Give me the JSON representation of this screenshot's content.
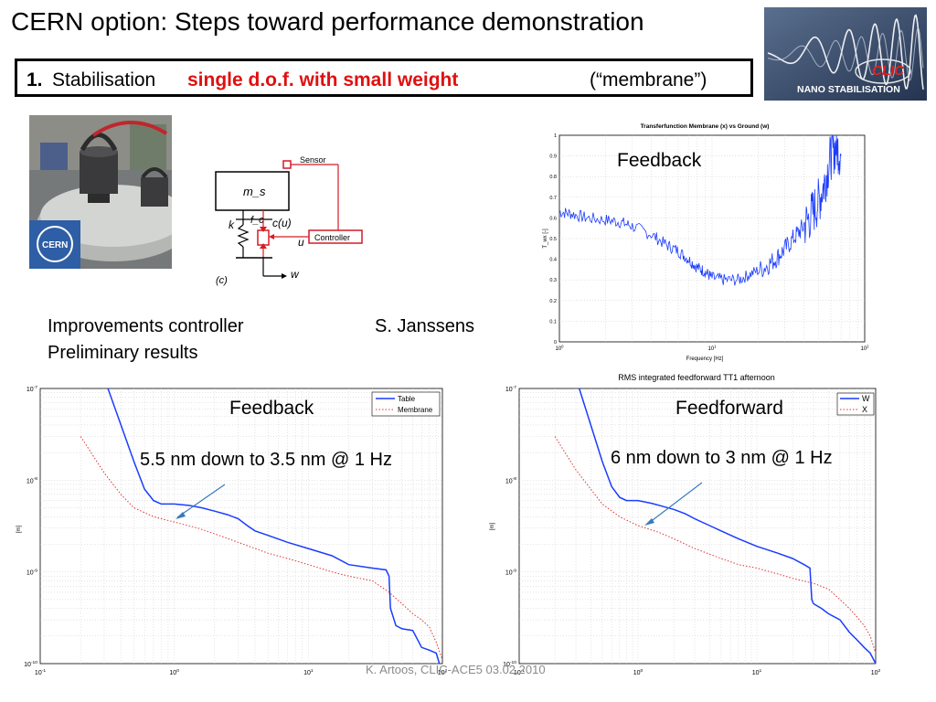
{
  "slide": {
    "title": "CERN option: Steps toward performance demonstration",
    "subtitle_number": "1.",
    "subtitle_plain": "Stabilisation",
    "subtitle_highlight": "single d.o.f. with small weight",
    "subtitle_right": "(“membrane”)",
    "footer": "K. Artoos, CLIC-ACE5 03.02.2010",
    "accent_color": "#e01010"
  },
  "logo": {
    "text_main": "CLIC",
    "text_sub": "NANO STABILISATION",
    "icon": "clic-nano-stabilisation-logo"
  },
  "photo": {
    "badge": "CERN",
    "icon": "membrane-setup-photo"
  },
  "schematic": {
    "mass_label": "m_s",
    "spring_label": "k",
    "force_label": "f_c",
    "control_label": "c(u)",
    "input_label": "u",
    "sensor_label": "Sensor",
    "controller_label": "Controller",
    "ground_label": "w",
    "figure_label": "(c)",
    "color": "#d41c24"
  },
  "notes": {
    "line1": "Improvements controller",
    "line2": "Preliminary results",
    "author": "S. Janssens"
  },
  "chart_data": [
    {
      "type": "line",
      "title": "Transferfunction Membrane (x) vs Ground (w)",
      "annotation": "Feedback",
      "xlabel": "Frequency [Hz]",
      "ylabel": "T_wx [-]",
      "xscale": "log",
      "xlim": [
        1,
        100
      ],
      "ylim": [
        0,
        1
      ],
      "xticks": [
        "10^0",
        "10^1",
        "10^2"
      ],
      "yticks": [
        "0",
        "0.1",
        "0.2",
        "0.3",
        "0.4",
        "0.5",
        "0.6",
        "0.7",
        "0.8",
        "0.9",
        "1"
      ],
      "grid": true,
      "series": [
        {
          "color": "#1a3cff",
          "x": [
            1,
            1.2,
            1.5,
            2,
            2.5,
            3,
            4,
            5,
            6,
            7,
            8,
            9,
            10,
            12,
            15,
            18,
            22,
            26,
            30,
            35,
            40,
            45,
            50,
            55,
            60,
            65,
            70
          ],
          "y": [
            0.63,
            0.62,
            0.6,
            0.59,
            0.58,
            0.56,
            0.52,
            0.47,
            0.44,
            0.4,
            0.36,
            0.34,
            0.31,
            0.3,
            0.3,
            0.33,
            0.36,
            0.4,
            0.45,
            0.51,
            0.56,
            0.62,
            0.68,
            0.78,
            0.9,
            0.95,
            0.9
          ]
        }
      ]
    },
    {
      "type": "line",
      "title": "",
      "annotation": "Feedback",
      "callout": "5.5 nm down to 3.5 nm @ 1 Hz",
      "xlabel": "",
      "ylabel": "[m]",
      "xscale": "log",
      "yscale": "log",
      "xlim": [
        0.1,
        100
      ],
      "ylim": [
        1e-10,
        1e-07
      ],
      "xticks": [
        "10^-1",
        "10^0",
        "10^1",
        "10^2"
      ],
      "yticks": [
        "10^-10",
        "10^-9",
        "10^-8",
        "10^-7"
      ],
      "legend": "top-right",
      "grid": true,
      "series": [
        {
          "name": "Table",
          "color": "#1a3cff",
          "style": "solid",
          "x": [
            0.32,
            0.4,
            0.5,
            0.6,
            0.7,
            0.8,
            1.0,
            1.3,
            1.6,
            2.0,
            2.5,
            3.0,
            3.5,
            4.0,
            5.0,
            7.0,
            10,
            15,
            20,
            30,
            38,
            40,
            41,
            45,
            50,
            60,
            70,
            80,
            90,
            95
          ],
          "y": [
            1e-07,
            4e-08,
            1.6e-08,
            8e-09,
            6e-09,
            5.5e-09,
            5.5e-09,
            5.3e-09,
            5e-09,
            4.6e-09,
            4.2e-09,
            3.8e-09,
            3.2e-09,
            2.8e-09,
            2.5e-09,
            2.1e-09,
            1.8e-09,
            1.5e-09,
            1.2e-09,
            1.1e-09,
            1.05e-09,
            9e-10,
            4e-10,
            2.6e-10,
            2.4e-10,
            2.3e-10,
            1.5e-10,
            1.4e-10,
            1.3e-10,
            1e-10
          ]
        },
        {
          "name": "Membrane",
          "color": "#e03030",
          "style": "dotted",
          "x": [
            0.2,
            0.3,
            0.4,
            0.5,
            0.7,
            1.0,
            1.5,
            2,
            3,
            5,
            7,
            10,
            15,
            20,
            30,
            40,
            50,
            60,
            70,
            80,
            90,
            100
          ],
          "y": [
            3e-08,
            1.2e-08,
            7e-09,
            5e-09,
            4e-09,
            3.5e-09,
            3e-09,
            2.6e-09,
            2.1e-09,
            1.6e-09,
            1.4e-09,
            1.2e-09,
            1e-09,
            9e-10,
            8e-10,
            6e-10,
            4.5e-10,
            3.5e-10,
            3e-10,
            2.5e-10,
            1.7e-10,
            1.1e-10
          ]
        }
      ]
    },
    {
      "type": "line",
      "title": "RMS integrated feedforward TT1 afternoon",
      "annotation": "Feedforward",
      "callout": "6 nm down to 3 nm @ 1 Hz",
      "xlabel": "",
      "ylabel": "[m]",
      "xscale": "log",
      "yscale": "log",
      "xlim": [
        0.1,
        100
      ],
      "ylim": [
        1e-10,
        1e-07
      ],
      "xticks": [
        "10^-1",
        "10^0",
        "10^1",
        "10^2"
      ],
      "yticks": [
        "10^-10",
        "10^-9",
        "10^-8",
        "10^-7"
      ],
      "legend": "top-right",
      "grid": true,
      "series": [
        {
          "name": "W",
          "color": "#1a3cff",
          "style": "solid",
          "x": [
            0.32,
            0.4,
            0.5,
            0.6,
            0.7,
            0.8,
            1.0,
            1.3,
            1.6,
            2.0,
            2.5,
            3.0,
            4.0,
            5.0,
            7.0,
            10,
            15,
            20,
            25,
            28,
            29,
            30,
            35,
            40,
            50,
            60,
            70,
            80,
            90,
            100
          ],
          "y": [
            1e-07,
            4e-08,
            1.6e-08,
            8.5e-09,
            6.5e-09,
            6e-09,
            6e-09,
            5.6e-09,
            5.2e-09,
            4.8e-09,
            4.3e-09,
            3.8e-09,
            3.2e-09,
            2.8e-09,
            2.3e-09,
            1.9e-09,
            1.6e-09,
            1.4e-09,
            1.2e-09,
            1.1e-09,
            5e-10,
            4.5e-10,
            4e-10,
            3.5e-10,
            3e-10,
            2.2e-10,
            1.8e-10,
            1.5e-10,
            1.3e-10,
            1e-10
          ]
        },
        {
          "name": "X",
          "color": "#e03030",
          "style": "dotted",
          "x": [
            0.2,
            0.3,
            0.4,
            0.5,
            0.7,
            1.0,
            1.5,
            2,
            3,
            5,
            7,
            10,
            15,
            20,
            30,
            40,
            50,
            60,
            70,
            80,
            90,
            100
          ],
          "y": [
            3e-08,
            1.3e-08,
            8e-09,
            5.5e-09,
            4e-09,
            3.2e-09,
            2.7e-09,
            2.3e-09,
            1.8e-09,
            1.4e-09,
            1.2e-09,
            1.1e-09,
            9.5e-10,
            8.5e-10,
            7.5e-10,
            6.5e-10,
            5e-10,
            4e-10,
            3.2e-10,
            2.6e-10,
            2e-10,
            1.3e-10
          ]
        }
      ]
    }
  ]
}
